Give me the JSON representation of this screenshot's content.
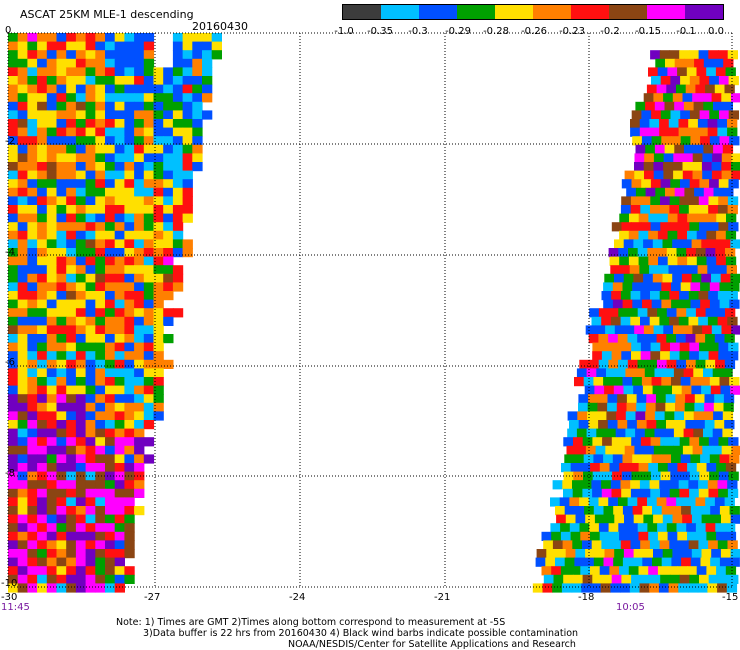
{
  "header": {
    "title": "ASCAT 25KM MLE-1 descending",
    "date": "20160430"
  },
  "colorbar": {
    "colors": [
      "#3c3c3c",
      "#00c0ff",
      "#0050ff",
      "#00a000",
      "#ffe000",
      "#ff8000",
      "#ff1010",
      "#8b4513",
      "#ff00ff",
      "#7000c0"
    ],
    "labels": [
      "-1.0",
      "-0.35",
      "-0.3",
      "-0.29",
      "-0.28",
      "-0.26",
      "-0.23",
      "-0.2",
      "-0.15",
      "-0.1",
      "0.0"
    ]
  },
  "axes": {
    "x_ticks": [
      "-30",
      "-27",
      "-24",
      "-21",
      "-18",
      "-15"
    ],
    "y_ticks": [
      "0",
      "-2",
      "-4",
      "-6",
      "-8",
      "-10"
    ],
    "xlim": [
      -30,
      -15
    ],
    "ylim": [
      -10,
      0
    ]
  },
  "times": {
    "left": "11:45",
    "right": "10:05"
  },
  "notes": {
    "line1": "Note: 1) Times are GMT 2)Times along bottom correspond to measurement at -5S",
    "line2": "3)Data buffer is 22 hrs from 20160430 4) Black wind barbs indicate possible contamination",
    "line3": "NOAA/NESDIS/Center for Satellite Applications and Research"
  }
}
